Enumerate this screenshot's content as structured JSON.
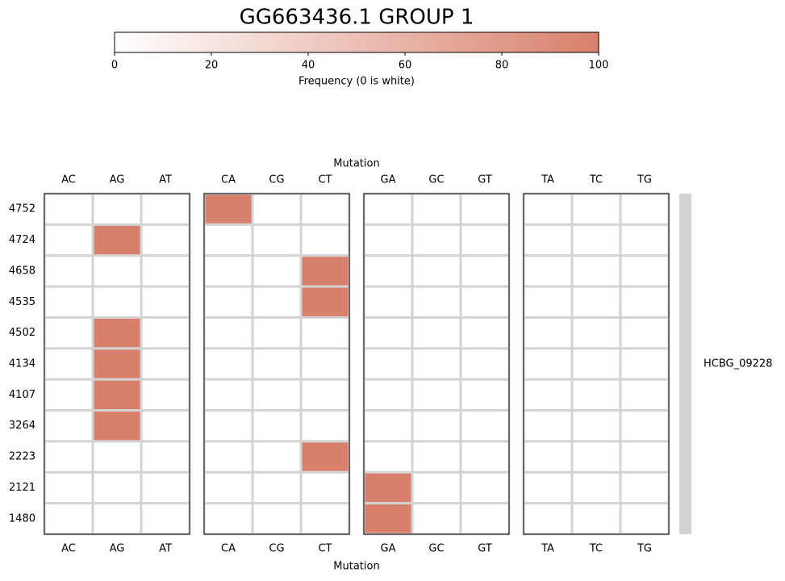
{
  "chart_data": {
    "type": "heatmap",
    "title": "GG663436.1 GROUP 1",
    "xlabel": "Mutation",
    "column_groups": [
      [
        "AC",
        "AG",
        "AT"
      ],
      [
        "CA",
        "CG",
        "CT"
      ],
      [
        "GA",
        "GC",
        "GT"
      ],
      [
        "TA",
        "TC",
        "TG"
      ]
    ],
    "rows": [
      "4752",
      "4724",
      "4658",
      "4535",
      "4502",
      "4134",
      "4107",
      "3264",
      "2223",
      "2121",
      "1480"
    ],
    "values": [
      [
        0,
        0,
        0,
        100,
        0,
        0,
        0,
        0,
        0,
        0,
        0,
        0
      ],
      [
        0,
        100,
        0,
        0,
        0,
        0,
        0,
        0,
        0,
        0,
        0,
        0
      ],
      [
        0,
        0,
        0,
        0,
        0,
        100,
        0,
        0,
        0,
        0,
        0,
        0
      ],
      [
        0,
        0,
        0,
        0,
        0,
        100,
        0,
        0,
        0,
        0,
        0,
        0
      ],
      [
        0,
        100,
        0,
        0,
        0,
        0,
        0,
        0,
        0,
        0,
        0,
        0
      ],
      [
        0,
        100,
        0,
        0,
        0,
        0,
        0,
        0,
        0,
        0,
        0,
        0
      ],
      [
        0,
        100,
        0,
        0,
        0,
        0,
        0,
        0,
        0,
        0,
        0,
        0
      ],
      [
        0,
        100,
        0,
        0,
        0,
        0,
        0,
        0,
        0,
        0,
        0,
        0
      ],
      [
        0,
        0,
        0,
        0,
        0,
        100,
        0,
        0,
        0,
        0,
        0,
        0
      ],
      [
        0,
        0,
        0,
        0,
        0,
        0,
        100,
        0,
        0,
        0,
        0,
        0
      ],
      [
        0,
        0,
        0,
        0,
        0,
        0,
        100,
        0,
        0,
        0,
        0,
        0
      ]
    ],
    "row_group": {
      "label": "HCBG_09228",
      "color": "#d3d3d3"
    },
    "colorbar": {
      "label": "Frequency (0 is white)",
      "lim": [
        0,
        100
      ],
      "ticks": [
        0,
        20,
        40,
        60,
        80,
        100
      ],
      "cmap": [
        "#ffffff",
        "#d9806c"
      ]
    }
  }
}
